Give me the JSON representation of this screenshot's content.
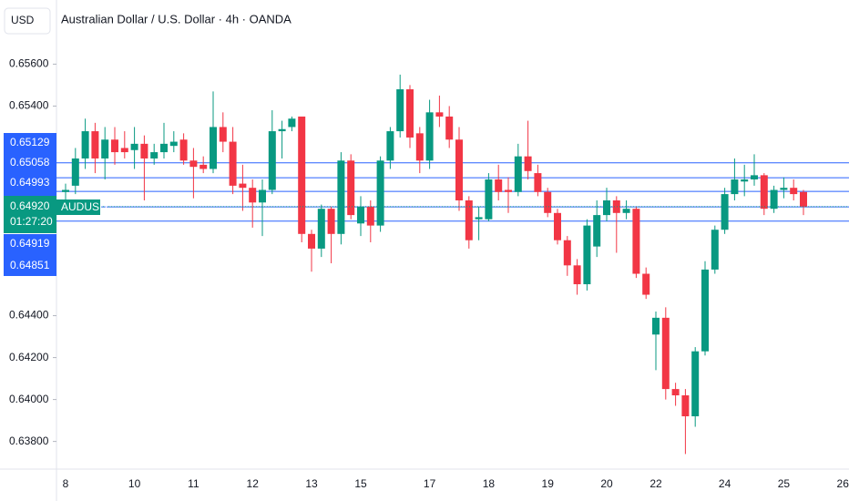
{
  "chart_data": {
    "type": "candlestick",
    "title": "Australian Dollar / U.S. Dollar · 4h · OANDA",
    "currency": "USD",
    "symbol": "AUDUSD",
    "countdown": "01:27:20",
    "up_color": "#089981",
    "down_color": "#f23645",
    "level_color": "#2962ff",
    "categories": [
      "8",
      null,
      null,
      null,
      null,
      null,
      null,
      "10",
      null,
      null,
      null,
      null,
      null,
      "11",
      null,
      null,
      null,
      null,
      null,
      "12",
      null,
      null,
      null,
      null,
      null,
      "13",
      null,
      null,
      null,
      null,
      "15",
      null,
      null,
      null,
      null,
      null,
      null,
      "17",
      null,
      null,
      null,
      null,
      null,
      "18",
      null,
      null,
      null,
      null,
      null,
      "19",
      null,
      null,
      null,
      null,
      null,
      "20",
      null,
      null,
      null,
      null,
      "22",
      null,
      null,
      null,
      null,
      null,
      null,
      "24",
      null,
      null,
      null,
      null,
      null,
      "25",
      null,
      null,
      null,
      null,
      null,
      "26"
    ],
    "open": [
      0.6499,
      0.6502,
      0.6515,
      0.6528,
      0.6515,
      0.6524,
      0.652,
      0.6519,
      0.6522,
      0.6515,
      0.6518,
      0.6521,
      0.6524,
      0.6514,
      0.6512,
      0.651,
      0.653,
      0.6523,
      0.6503,
      0.6501,
      0.6494,
      0.65,
      0.6528,
      0.653,
      0.6535,
      0.6479,
      0.6472,
      0.6491,
      0.6479,
      0.6514,
      0.6484,
      0.6492,
      0.6483,
      0.6514,
      0.6528,
      0.6548,
      0.6527,
      0.6514,
      0.6537,
      0.6535,
      0.6524,
      0.6495,
      0.6486,
      0.6486,
      0.6505,
      0.65,
      0.6499,
      0.6516,
      0.6508,
      0.6499,
      0.6489,
      0.6476,
      0.6464,
      0.6455,
      0.6473,
      0.6488,
      0.6495,
      0.6489,
      0.6491,
      0.646,
      0.6431,
      0.6439,
      0.6405,
      0.6402,
      0.6392,
      0.6423,
      0.6462,
      0.6481,
      0.6498,
      0.6504,
      0.6505,
      0.6507,
      0.6491,
      0.65,
      0.6501,
      0.6499,
      null,
      null,
      null,
      null
    ],
    "high": [
      0.6503,
      0.652,
      0.6534,
      0.6532,
      0.653,
      0.653,
      0.6528,
      0.653,
      0.6526,
      0.6522,
      0.6532,
      0.6528,
      0.6527,
      0.652,
      0.6516,
      0.6547,
      0.6537,
      0.653,
      0.6512,
      0.6505,
      0.6505,
      0.6538,
      0.6533,
      0.6535,
      0.6535,
      0.6481,
      0.6493,
      0.6492,
      0.6518,
      0.6517,
      0.6497,
      0.6495,
      0.6516,
      0.653,
      0.6555,
      0.655,
      0.653,
      0.6543,
      0.6545,
      0.654,
      0.653,
      0.6497,
      0.6492,
      0.6508,
      0.6512,
      0.6506,
      0.6522,
      0.6533,
      0.6512,
      0.6501,
      0.6491,
      0.6478,
      0.6467,
      0.6486,
      0.6495,
      0.6501,
      0.6497,
      0.6495,
      0.6492,
      0.6463,
      0.6442,
      0.6444,
      0.6408,
      0.6405,
      0.6425,
      0.6466,
      0.6483,
      0.6501,
      0.6515,
      0.6512,
      0.6517,
      0.6508,
      0.6502,
      0.6506,
      0.6505,
      0.65,
      null,
      null,
      null,
      null
    ],
    "low": [
      0.6495,
      0.6498,
      0.651,
      0.6508,
      0.6505,
      0.6512,
      0.6515,
      0.651,
      0.6495,
      0.6512,
      0.6515,
      0.6518,
      0.6512,
      0.6496,
      0.6508,
      0.6508,
      0.6518,
      0.6498,
      0.649,
      0.6482,
      0.6478,
      0.6498,
      0.6515,
      0.6528,
      0.6475,
      0.6461,
      0.6468,
      0.6465,
      0.6474,
      0.6486,
      0.6478,
      0.6475,
      0.648,
      0.651,
      0.6525,
      0.652,
      0.6508,
      0.651,
      0.653,
      0.652,
      0.649,
      0.6472,
      0.6476,
      0.6485,
      0.6495,
      0.6489,
      0.6497,
      0.6505,
      0.6497,
      0.6487,
      0.6474,
      0.6459,
      0.645,
      0.6452,
      0.6468,
      0.6485,
      0.647,
      0.6486,
      0.6458,
      0.6448,
      0.6414,
      0.64,
      0.6397,
      0.6374,
      0.6387,
      0.6421,
      0.646,
      0.6479,
      0.6495,
      0.6497,
      0.6502,
      0.6488,
      0.6489,
      0.6496,
      0.6495,
      0.6488,
      null,
      null,
      null,
      null
    ],
    "close": [
      0.65,
      0.6515,
      0.6528,
      0.6515,
      0.6524,
      0.6518,
      0.6518,
      0.6522,
      0.6515,
      0.6518,
      0.6522,
      0.6523,
      0.6514,
      0.6511,
      0.651,
      0.653,
      0.6523,
      0.6502,
      0.6501,
      0.6494,
      0.65,
      0.6528,
      0.6529,
      0.6534,
      0.6479,
      0.6472,
      0.6491,
      0.6479,
      0.6514,
      0.6488,
      0.6492,
      0.6483,
      0.6514,
      0.6528,
      0.6548,
      0.6525,
      0.6514,
      0.6537,
      0.6535,
      0.6524,
      0.6495,
      0.6476,
      0.6487,
      0.6505,
      0.6499,
      0.6499,
      0.6516,
      0.6509,
      0.6499,
      0.6489,
      0.6476,
      0.6464,
      0.6455,
      0.6483,
      0.6488,
      0.6495,
      0.6489,
      0.6491,
      0.646,
      0.645,
      0.6439,
      0.6405,
      0.6402,
      0.6392,
      0.6423,
      0.6462,
      0.6481,
      0.6498,
      0.6505,
      0.6505,
      0.6507,
      0.6491,
      0.65,
      0.6501,
      0.6498,
      0.6492,
      null,
      null,
      null,
      null
    ],
    "levels": [
      0.65129,
      0.65058,
      0.64993,
      0.64919,
      0.64851
    ],
    "last_price": 0.6492,
    "last_price_label": "0.64920",
    "ylim": [
      0.63668,
      0.65906
    ],
    "yticks": [
      {
        "value": 0.656,
        "label": "0.65600"
      },
      {
        "value": 0.654,
        "label": "0.65400"
      },
      {
        "value": 0.644,
        "label": "0.64400"
      },
      {
        "value": 0.642,
        "label": "0.64200"
      },
      {
        "value": 0.64,
        "label": "0.64000"
      },
      {
        "value": 0.638,
        "label": "0.63800"
      }
    ]
  }
}
